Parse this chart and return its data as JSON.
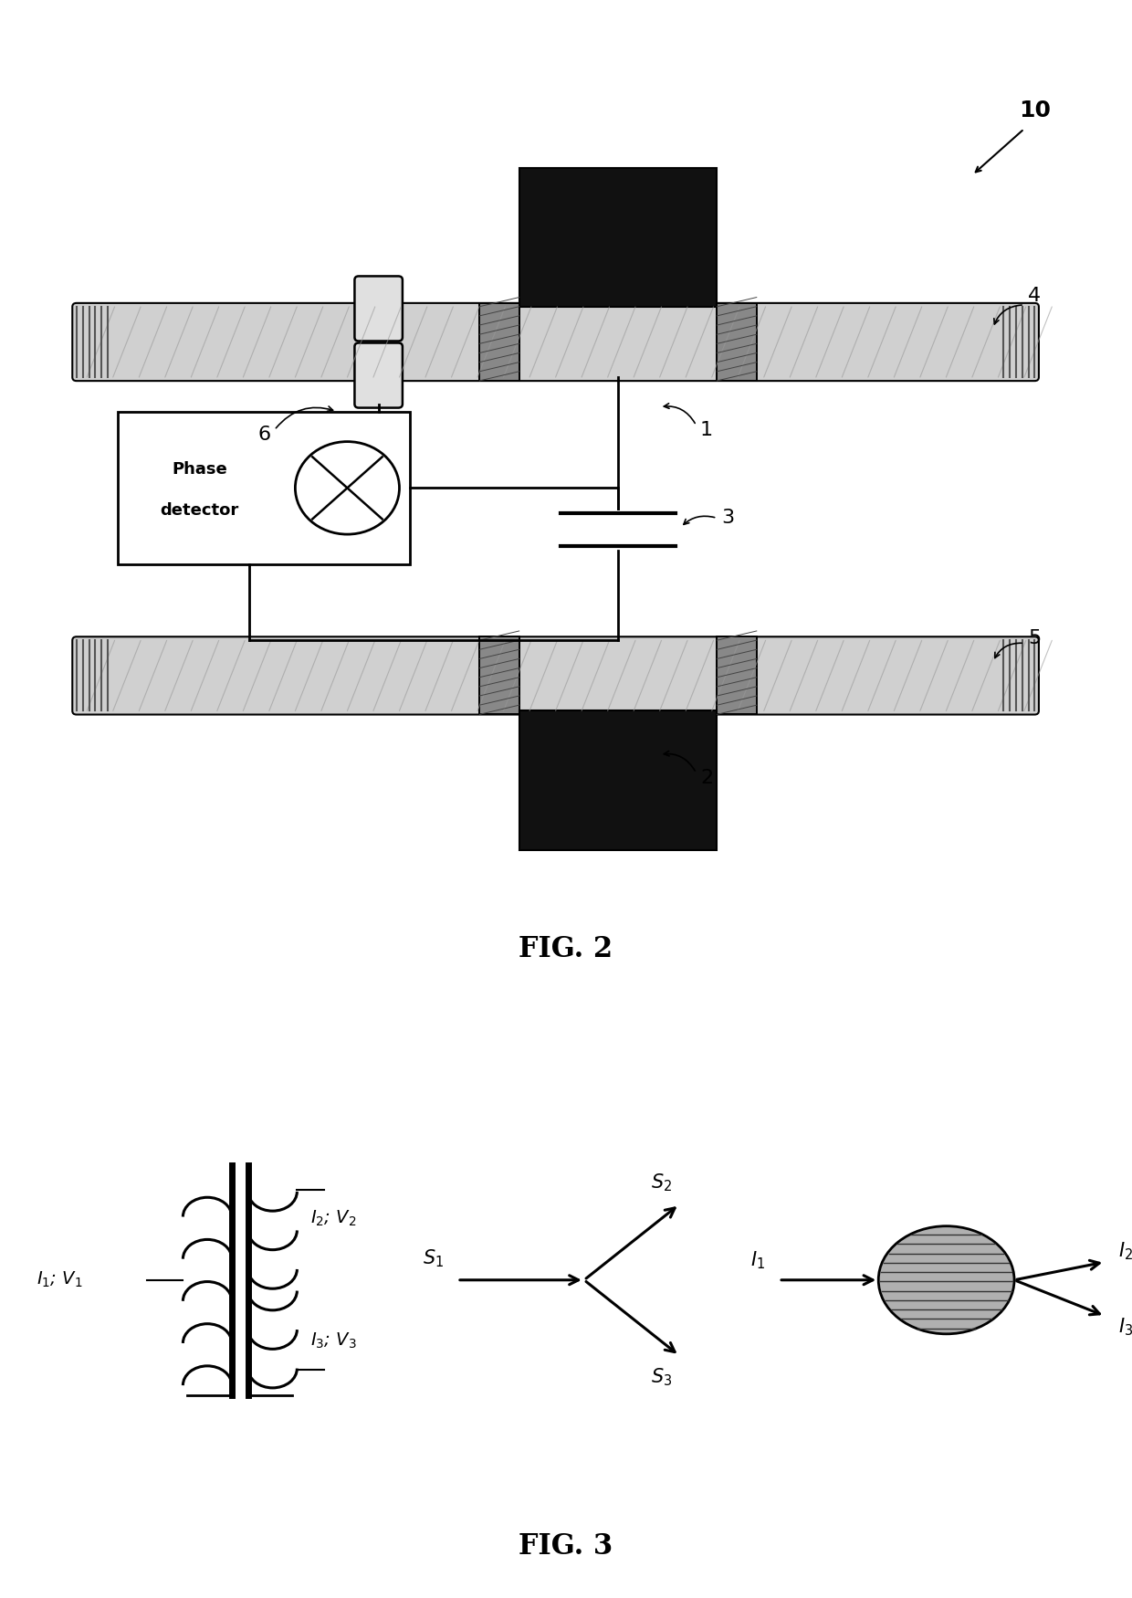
{
  "bg_color": "#ffffff",
  "line_color": "#000000",
  "fig2_title": "FIG. 2",
  "fig3_title": "FIG. 3",
  "label_10": "10",
  "label_4": "4",
  "label_1": "1",
  "label_2": "2",
  "label_3": "3",
  "label_5": "5",
  "label_6": "6"
}
